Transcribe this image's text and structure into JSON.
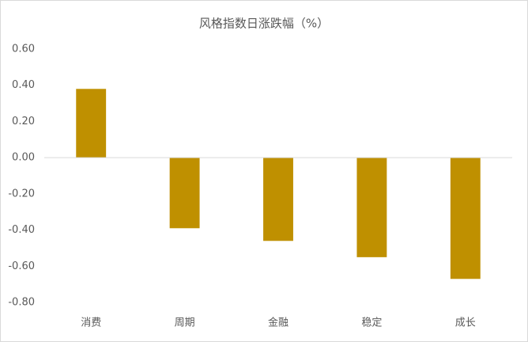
{
  "chart_data": {
    "type": "bar",
    "title": "风格指数日涨跌幅（%）",
    "categories": [
      "消费",
      "周期",
      "金融",
      "稳定",
      "成长"
    ],
    "values": [
      0.38,
      -0.39,
      -0.46,
      -0.55,
      -0.67
    ],
    "color": "#bf9000",
    "ylim": [
      -0.8,
      0.6
    ],
    "yticks": [
      {
        "value": 0.6,
        "label": "0.60"
      },
      {
        "value": 0.4,
        "label": "0.40"
      },
      {
        "value": 0.2,
        "label": "0.20"
      },
      {
        "value": 0,
        "label": "0.00"
      },
      {
        "value": -0.2,
        "label": "-0.20"
      },
      {
        "value": -0.4,
        "label": "-0.40"
      },
      {
        "value": -0.6,
        "label": "-0.60"
      },
      {
        "value": -0.8,
        "label": "-0.80"
      }
    ],
    "grid": false
  }
}
